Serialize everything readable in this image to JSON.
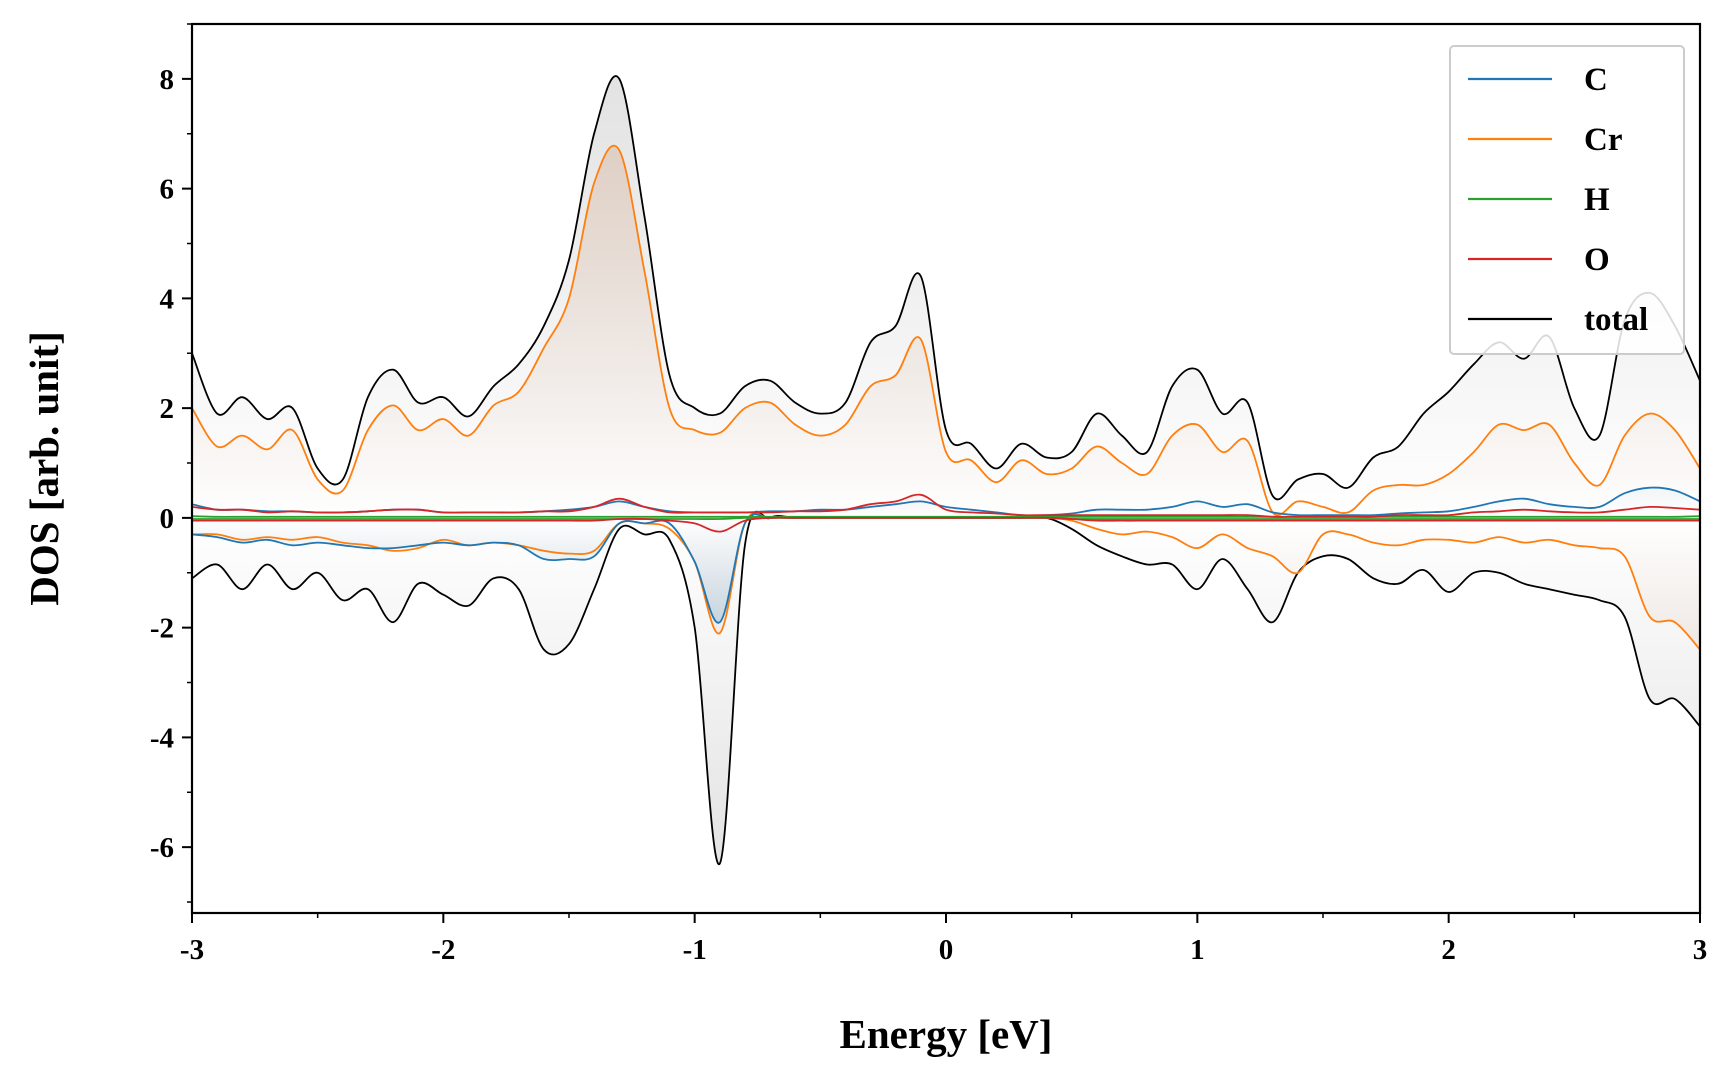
{
  "chart_data": {
    "type": "line",
    "xlabel": "Energy [eV]",
    "ylabel": "DOS [arb. unit]",
    "xlim": [
      -3,
      3
    ],
    "ylim": [
      -7.2,
      9
    ],
    "xticks": [
      -3,
      -2,
      -1,
      0,
      1,
      2,
      3
    ],
    "xtick_labels": [
      "-3",
      "-2",
      "-1",
      "0",
      "1",
      "2",
      "3"
    ],
    "yticks": [
      -6,
      -4,
      -2,
      0,
      2,
      4,
      6,
      8
    ],
    "ytick_labels": [
      "-6",
      "-4",
      "-2",
      "0",
      "2",
      "4",
      "6",
      "8"
    ],
    "grid": false,
    "legend_position": "top-right",
    "x": [
      -3.0,
      -2.9,
      -2.8,
      -2.7,
      -2.6,
      -2.5,
      -2.4,
      -2.3,
      -2.2,
      -2.1,
      -2.0,
      -1.9,
      -1.8,
      -1.7,
      -1.6,
      -1.5,
      -1.4,
      -1.3,
      -1.2,
      -1.1,
      -1.0,
      -0.9,
      -0.8,
      -0.7,
      -0.6,
      -0.5,
      -0.4,
      -0.3,
      -0.2,
      -0.1,
      0.0,
      0.1,
      0.2,
      0.3,
      0.4,
      0.5,
      0.6,
      0.7,
      0.8,
      0.9,
      1.0,
      1.1,
      1.2,
      1.3,
      1.4,
      1.5,
      1.6,
      1.7,
      1.8,
      1.9,
      2.0,
      2.1,
      2.2,
      2.3,
      2.4,
      2.5,
      2.6,
      2.7,
      2.8,
      2.9,
      3.0
    ],
    "series": [
      {
        "name": "C",
        "color": "#1f77b4",
        "up": [
          0.25,
          0.15,
          0.15,
          0.12,
          0.12,
          0.1,
          0.1,
          0.12,
          0.15,
          0.15,
          0.1,
          0.1,
          0.1,
          0.1,
          0.12,
          0.15,
          0.2,
          0.3,
          0.2,
          0.12,
          0.1,
          0.1,
          0.1,
          0.12,
          0.12,
          0.15,
          0.15,
          0.2,
          0.25,
          0.3,
          0.2,
          0.15,
          0.1,
          0.05,
          0.05,
          0.08,
          0.15,
          0.15,
          0.15,
          0.2,
          0.3,
          0.2,
          0.25,
          0.1,
          0.05,
          0.05,
          0.05,
          0.05,
          0.08,
          0.1,
          0.12,
          0.2,
          0.3,
          0.35,
          0.25,
          0.2,
          0.2,
          0.45,
          0.55,
          0.5,
          0.3
        ],
        "down": [
          -0.3,
          -0.35,
          -0.45,
          -0.4,
          -0.5,
          -0.45,
          -0.5,
          -0.55,
          -0.55,
          -0.5,
          -0.45,
          -0.5,
          -0.45,
          -0.5,
          -0.75,
          -0.75,
          -0.7,
          -0.1,
          -0.1,
          -0.1,
          -0.8,
          -1.9,
          -0.1,
          0.0,
          0.0,
          0.0,
          0.0,
          0.0,
          0.0,
          0.0,
          0.0,
          0.0,
          0.0,
          0.0,
          0.0,
          -0.02,
          -0.03,
          -0.05,
          -0.05,
          -0.05,
          -0.05,
          -0.05,
          -0.05,
          -0.05,
          -0.05,
          -0.05,
          -0.05,
          -0.05,
          -0.05,
          -0.05,
          -0.05,
          -0.05,
          -0.05,
          -0.05,
          -0.05,
          -0.05,
          -0.05,
          -0.05,
          -0.05,
          -0.05,
          -0.05
        ]
      },
      {
        "name": "Cr",
        "color": "#ff7f0e",
        "up": [
          2.0,
          1.3,
          1.5,
          1.25,
          1.6,
          0.7,
          0.5,
          1.6,
          2.05,
          1.6,
          1.8,
          1.5,
          2.05,
          2.3,
          3.1,
          4.0,
          6.1,
          6.7,
          4.5,
          2.0,
          1.6,
          1.55,
          2.0,
          2.1,
          1.7,
          1.5,
          1.7,
          2.4,
          2.6,
          3.25,
          1.2,
          1.05,
          0.65,
          1.05,
          0.8,
          0.9,
          1.3,
          1.0,
          0.8,
          1.5,
          1.7,
          1.2,
          1.4,
          0.1,
          0.3,
          0.2,
          0.1,
          0.5,
          0.6,
          0.6,
          0.8,
          1.2,
          1.7,
          1.6,
          1.7,
          1.0,
          0.6,
          1.5,
          1.9,
          1.6,
          0.9
        ],
        "down": [
          -0.3,
          -0.3,
          -0.4,
          -0.35,
          -0.4,
          -0.35,
          -0.45,
          -0.5,
          -0.6,
          -0.55,
          -0.4,
          -0.5,
          -0.45,
          -0.5,
          -0.6,
          -0.65,
          -0.6,
          -0.1,
          -0.1,
          -0.2,
          -0.8,
          -2.1,
          -0.1,
          0.0,
          0.0,
          0.0,
          0.0,
          0.0,
          0.0,
          0.0,
          0.0,
          0.0,
          0.0,
          0.0,
          0.0,
          -0.05,
          -0.2,
          -0.3,
          -0.25,
          -0.35,
          -0.55,
          -0.3,
          -0.55,
          -0.7,
          -1.0,
          -0.3,
          -0.3,
          -0.45,
          -0.5,
          -0.4,
          -0.4,
          -0.45,
          -0.35,
          -0.45,
          -0.4,
          -0.5,
          -0.55,
          -0.7,
          -1.8,
          -1.9,
          -2.4
        ]
      },
      {
        "name": "H",
        "color": "#2ca02c",
        "up": [
          0.03,
          0.02,
          0.02,
          0.02,
          0.02,
          0.02,
          0.02,
          0.02,
          0.02,
          0.02,
          0.02,
          0.02,
          0.02,
          0.02,
          0.02,
          0.02,
          0.02,
          0.02,
          0.02,
          0.02,
          0.02,
          0.02,
          0.02,
          0.02,
          0.02,
          0.02,
          0.02,
          0.02,
          0.02,
          0.02,
          0.02,
          0.02,
          0.02,
          0.02,
          0.02,
          0.02,
          0.02,
          0.02,
          0.02,
          0.02,
          0.02,
          0.02,
          0.02,
          0.02,
          0.02,
          0.02,
          0.02,
          0.02,
          0.02,
          0.02,
          0.02,
          0.02,
          0.02,
          0.02,
          0.02,
          0.02,
          0.02,
          0.02,
          0.02,
          0.02,
          0.03
        ],
        "down": [
          -0.02,
          -0.02,
          -0.02,
          -0.02,
          -0.02,
          -0.02,
          -0.02,
          -0.02,
          -0.02,
          -0.02,
          -0.02,
          -0.02,
          -0.02,
          -0.02,
          -0.02,
          -0.02,
          -0.02,
          -0.02,
          -0.02,
          -0.02,
          -0.02,
          -0.02,
          0.0,
          0.0,
          0.0,
          0.0,
          0.0,
          0.0,
          0.0,
          0.0,
          0.0,
          0.0,
          0.0,
          0.0,
          0.0,
          -0.02,
          -0.02,
          -0.02,
          -0.02,
          -0.02,
          -0.02,
          -0.02,
          -0.02,
          -0.02,
          -0.02,
          -0.02,
          -0.02,
          -0.02,
          -0.02,
          -0.02,
          -0.02,
          -0.02,
          -0.02,
          -0.02,
          -0.02,
          -0.02,
          -0.02,
          -0.02,
          -0.02,
          -0.02,
          -0.02
        ]
      },
      {
        "name": "O",
        "color": "#d62728",
        "up": [
          0.2,
          0.15,
          0.15,
          0.1,
          0.12,
          0.1,
          0.1,
          0.12,
          0.15,
          0.15,
          0.1,
          0.1,
          0.1,
          0.1,
          0.12,
          0.12,
          0.2,
          0.35,
          0.2,
          0.1,
          0.1,
          0.1,
          0.1,
          0.1,
          0.12,
          0.12,
          0.15,
          0.25,
          0.3,
          0.42,
          0.15,
          0.1,
          0.08,
          0.05,
          0.05,
          0.05,
          0.05,
          0.05,
          0.05,
          0.05,
          0.05,
          0.05,
          0.05,
          0.02,
          0.02,
          0.02,
          0.02,
          0.02,
          0.05,
          0.05,
          0.05,
          0.1,
          0.12,
          0.15,
          0.12,
          0.1,
          0.1,
          0.15,
          0.2,
          0.18,
          0.15
        ],
        "down": [
          -0.05,
          -0.05,
          -0.05,
          -0.05,
          -0.05,
          -0.05,
          -0.05,
          -0.05,
          -0.05,
          -0.05,
          -0.05,
          -0.05,
          -0.05,
          -0.05,
          -0.05,
          -0.05,
          -0.05,
          -0.02,
          -0.02,
          -0.05,
          -0.1,
          -0.25,
          -0.05,
          0.0,
          0.0,
          0.0,
          0.0,
          0.0,
          0.0,
          0.0,
          0.0,
          0.0,
          0.0,
          0.0,
          0.0,
          -0.02,
          -0.05,
          -0.05,
          -0.05,
          -0.05,
          -0.05,
          -0.05,
          -0.05,
          -0.05,
          -0.05,
          -0.05,
          -0.05,
          -0.05,
          -0.05,
          -0.05,
          -0.05,
          -0.05,
          -0.05,
          -0.05,
          -0.05,
          -0.05,
          -0.05,
          -0.05,
          -0.05,
          -0.05,
          -0.05
        ]
      },
      {
        "name": "total",
        "color": "#000000",
        "up": [
          3.0,
          1.9,
          2.2,
          1.8,
          2.0,
          0.9,
          0.7,
          2.2,
          2.7,
          2.1,
          2.2,
          1.85,
          2.4,
          2.8,
          3.5,
          4.7,
          7.0,
          8.0,
          5.5,
          2.6,
          2.0,
          1.9,
          2.4,
          2.5,
          2.1,
          1.9,
          2.1,
          3.2,
          3.5,
          4.4,
          1.6,
          1.35,
          0.9,
          1.35,
          1.1,
          1.2,
          1.9,
          1.5,
          1.2,
          2.4,
          2.7,
          1.9,
          2.1,
          0.4,
          0.7,
          0.8,
          0.55,
          1.1,
          1.3,
          1.9,
          2.3,
          2.8,
          3.2,
          2.9,
          3.3,
          2.0,
          1.5,
          3.6,
          4.1,
          3.5,
          2.5
        ],
        "down": [
          -1.1,
          -0.85,
          -1.3,
          -0.85,
          -1.3,
          -1.0,
          -1.5,
          -1.3,
          -1.9,
          -1.2,
          -1.4,
          -1.6,
          -1.1,
          -1.3,
          -2.4,
          -2.3,
          -1.3,
          -0.2,
          -0.3,
          -0.4,
          -2.0,
          -6.3,
          -0.5,
          0.0,
          0.0,
          0.0,
          0.0,
          0.0,
          0.0,
          0.0,
          0.0,
          0.0,
          0.0,
          0.0,
          0.0,
          -0.2,
          -0.5,
          -0.7,
          -0.85,
          -0.85,
          -1.3,
          -0.75,
          -1.3,
          -1.9,
          -1.0,
          -0.7,
          -0.75,
          -1.1,
          -1.2,
          -0.95,
          -1.35,
          -1.0,
          -1.0,
          -1.2,
          -1.3,
          -1.4,
          -1.5,
          -1.8,
          -3.3,
          -3.3,
          -3.8
        ]
      }
    ]
  }
}
